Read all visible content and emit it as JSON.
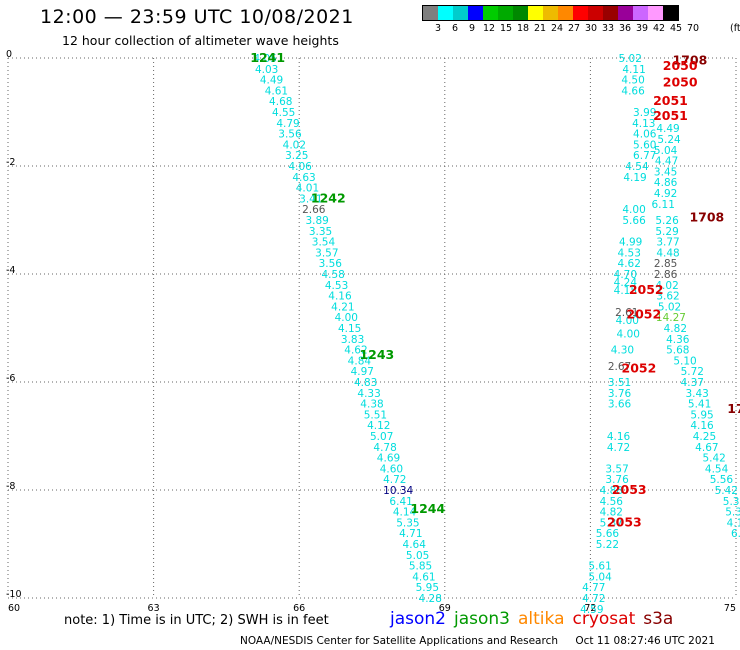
{
  "header": {
    "title": "12:00 — 23:59 UTC 10/08/2021",
    "subtitle": "12 hour collection of altimeter wave heights"
  },
  "color_scale": {
    "unit": "(ft)",
    "labels": [
      "3",
      "6",
      "9",
      "12",
      "15",
      "18",
      "21",
      "24",
      "27",
      "30",
      "33",
      "36",
      "39",
      "42",
      "45",
      "70"
    ],
    "colors": [
      "#7f7f7f",
      "#00ffff",
      "#00cccc",
      "#0000ff",
      "#00cc00",
      "#00aa00",
      "#008800",
      "#ffff00",
      "#eebb00",
      "#ff8800",
      "#ff0000",
      "#cc0000",
      "#990000",
      "#990099",
      "#cc66ff",
      "#ff99ff",
      "#000000"
    ]
  },
  "note": "note: 1) Time is in UTC; 2) SWH is in feet",
  "satellites": [
    {
      "name": "jason2",
      "color": "#0000ff"
    },
    {
      "name": "jason3",
      "color": "#009900"
    },
    {
      "name": "altika",
      "color": "#ff8800"
    },
    {
      "name": "cryosat",
      "color": "#dd0000"
    },
    {
      "name": "s3a",
      "color": "#880000"
    }
  ],
  "footer": {
    "credit": "NOAA/NESDIS Center for Satellite Applications and Research",
    "timestamp": "Oct 11 08:27:46 UTC 2021"
  },
  "chart_data": {
    "type": "scatter",
    "title": "12:00 — 23:59 UTC 10/08/2021",
    "subtitle": "12 hour collection of altimeter wave heights",
    "xlim": [
      60,
      75
    ],
    "ylim": [
      -10,
      0
    ],
    "xticks": [
      60,
      63,
      66,
      69,
      72,
      75
    ],
    "yticks": [
      0,
      -2,
      -4,
      -6,
      -8,
      -10
    ],
    "grid": true,
    "pass_times": [
      {
        "t": "1241",
        "x": 65.35,
        "y": 0,
        "color": "#009900"
      },
      {
        "t": "1242",
        "x": 66.6,
        "y": -2.6,
        "color": "#009900"
      },
      {
        "t": "1243",
        "x": 67.6,
        "y": -5.5,
        "color": "#009900"
      },
      {
        "t": "1244",
        "x": 68.65,
        "y": -8.35,
        "color": "#009900"
      },
      {
        "t": "1708",
        "x": 74.05,
        "y": -0.05,
        "color": "#880000"
      },
      {
        "t": "2050",
        "x": 73.85,
        "y": -0.15,
        "color": "#dd0000"
      },
      {
        "t": "2050",
        "x": 73.85,
        "y": -0.45,
        "color": "#dd0000"
      },
      {
        "t": "2051",
        "x": 73.65,
        "y": -0.8,
        "color": "#dd0000"
      },
      {
        "t": "2051",
        "x": 73.65,
        "y": -1.07,
        "color": "#dd0000"
      },
      {
        "t": "1708",
        "x": 74.4,
        "y": -2.95,
        "color": "#880000"
      },
      {
        "t": "2052",
        "x": 73.15,
        "y": -4.3,
        "color": "#dd0000"
      },
      {
        "t": "2052",
        "x": 73.1,
        "y": -4.75,
        "color": "#dd0000"
      },
      {
        "t": "2052",
        "x": 73.0,
        "y": -5.75,
        "color": "#dd0000"
      },
      {
        "t": "17",
        "x": 75.0,
        "y": -6.5,
        "color": "#880000"
      },
      {
        "t": "2053",
        "x": 72.8,
        "y": -8.0,
        "color": "#dd0000"
      },
      {
        "t": "2053",
        "x": 72.7,
        "y": -8.6,
        "color": "#dd0000"
      }
    ],
    "series": [
      {
        "name": "jason3",
        "points": [
          [
            65.3,
            0.0,
            "4.05"
          ],
          [
            65.33,
            -0.2,
            "4.03"
          ],
          [
            65.43,
            -0.4,
            "4.49"
          ],
          [
            65.53,
            -0.6,
            "4.61"
          ],
          [
            65.62,
            -0.8,
            "4.68"
          ],
          [
            65.68,
            -1.0,
            "4.55"
          ],
          [
            65.77,
            -1.2,
            "4.79"
          ],
          [
            65.81,
            -1.4,
            "3.56"
          ],
          [
            65.9,
            -1.6,
            "4.02"
          ],
          [
            65.95,
            -1.8,
            "3.25"
          ],
          [
            66.02,
            -2.0,
            "4.06"
          ],
          [
            66.1,
            -2.2,
            "4.63"
          ],
          [
            66.17,
            -2.4,
            "4.01"
          ],
          [
            66.24,
            -2.6,
            "3.41"
          ],
          [
            66.3,
            -2.8,
            "2.66"
          ],
          [
            66.37,
            -3.0,
            "3.89"
          ],
          [
            66.44,
            -3.2,
            "3.35"
          ],
          [
            66.5,
            -3.4,
            "3.54"
          ],
          [
            66.57,
            -3.6,
            "3.57"
          ],
          [
            66.64,
            -3.8,
            "3.56"
          ],
          [
            66.7,
            -4.0,
            "4.58"
          ],
          [
            66.77,
            -4.2,
            "4.53"
          ],
          [
            66.84,
            -4.4,
            "4.16"
          ],
          [
            66.9,
            -4.6,
            "4.21"
          ],
          [
            66.97,
            -4.8,
            "4.00"
          ],
          [
            67.04,
            -5.0,
            "4.15"
          ],
          [
            67.1,
            -5.2,
            "3.83"
          ],
          [
            67.17,
            -5.4,
            "4.62"
          ],
          [
            67.24,
            -5.6,
            "4.84"
          ],
          [
            67.3,
            -5.8,
            "4.97"
          ],
          [
            67.37,
            -6.0,
            "4.83"
          ],
          [
            67.44,
            -6.2,
            "4.33"
          ],
          [
            67.5,
            -6.4,
            "4.38"
          ],
          [
            67.57,
            -6.6,
            "5.51"
          ],
          [
            67.64,
            -6.8,
            "4.12"
          ],
          [
            67.7,
            -7.0,
            "5.07"
          ],
          [
            67.77,
            -7.2,
            "4.78"
          ],
          [
            67.84,
            -7.4,
            "4.69"
          ],
          [
            67.9,
            -7.6,
            "4.60"
          ],
          [
            67.97,
            -7.8,
            "4.72"
          ],
          [
            68.04,
            -8.0,
            "10.34"
          ],
          [
            68.1,
            -8.2,
            "6.41"
          ],
          [
            68.17,
            -8.4,
            "4.14"
          ],
          [
            68.24,
            -8.6,
            "5.35"
          ],
          [
            68.3,
            -8.8,
            "4.71"
          ],
          [
            68.37,
            -9.0,
            "4.64"
          ],
          [
            68.44,
            -9.2,
            "5.05"
          ],
          [
            68.5,
            -9.4,
            "5.85"
          ],
          [
            68.57,
            -9.6,
            "4.61"
          ],
          [
            68.64,
            -9.8,
            "5.95"
          ],
          [
            68.7,
            -10.0,
            "4.28"
          ]
        ]
      },
      {
        "name": "cryosat",
        "points": [
          [
            73.12,
            -1.0,
            "3.99"
          ],
          [
            73.1,
            -1.2,
            "4.13"
          ],
          [
            73.12,
            -1.4,
            "4.06"
          ],
          [
            73.12,
            -1.6,
            "5.60"
          ],
          [
            73.12,
            -1.8,
            "6.77"
          ],
          [
            72.96,
            -2.0,
            "4.54"
          ],
          [
            72.92,
            -2.2,
            "4.19"
          ],
          [
            72.9,
            -2.8,
            "4.00"
          ],
          [
            72.9,
            -3.0,
            "5.66"
          ],
          [
            72.83,
            -3.4,
            "4.99"
          ],
          [
            72.8,
            -3.6,
            "4.53"
          ],
          [
            72.8,
            -3.8,
            "4.62"
          ],
          [
            72.72,
            -4.0,
            "4.70"
          ],
          [
            72.72,
            -4.15,
            "4.24"
          ],
          [
            72.72,
            -4.3,
            "4.15"
          ],
          [
            72.75,
            -4.7,
            "2.61"
          ],
          [
            72.76,
            -4.85,
            "4.00"
          ],
          [
            72.78,
            -5.1,
            "4.00"
          ],
          [
            72.66,
            -5.4,
            "4.30"
          ],
          [
            72.6,
            -5.7,
            "2.67"
          ],
          [
            72.6,
            -6.0,
            "3.51"
          ],
          [
            72.6,
            -6.2,
            "3.76"
          ],
          [
            72.6,
            -6.4,
            "3.66"
          ],
          [
            72.58,
            -7.0,
            "4.16"
          ],
          [
            72.58,
            -7.2,
            "4.72"
          ],
          [
            72.55,
            -7.6,
            "3.57"
          ],
          [
            72.55,
            -7.8,
            "3.76"
          ],
          [
            72.43,
            -8.0,
            "4.88"
          ],
          [
            72.43,
            -8.2,
            "4.56"
          ],
          [
            72.43,
            -8.4,
            "4.82"
          ],
          [
            72.43,
            -8.6,
            "5.37"
          ],
          [
            72.35,
            -8.8,
            "5.66"
          ],
          [
            72.35,
            -9.0,
            "5.22"
          ],
          [
            72.2,
            -9.4,
            "5.61"
          ],
          [
            72.2,
            -9.6,
            "5.04"
          ],
          [
            72.07,
            -9.8,
            "4.77"
          ],
          [
            72.07,
            -10.0,
            "4.72"
          ],
          [
            72.03,
            -10.2,
            "4.59"
          ]
        ]
      },
      {
        "name": "s3a",
        "points": [
          [
            72.82,
            0.0,
            "5.02"
          ],
          [
            72.9,
            -0.2,
            "4.11"
          ],
          [
            72.88,
            -0.4,
            "4.50"
          ],
          [
            72.88,
            -0.6,
            "4.66"
          ],
          [
            73.6,
            -1.3,
            "4.49"
          ],
          [
            73.62,
            -1.5,
            "5.24"
          ],
          [
            73.55,
            -1.7,
            "5.04"
          ],
          [
            73.57,
            -1.9,
            "4.47"
          ],
          [
            73.55,
            -2.1,
            "3.45"
          ],
          [
            73.55,
            -2.3,
            "4.86"
          ],
          [
            73.55,
            -2.5,
            "4.92"
          ],
          [
            73.5,
            -2.7,
            "6.11"
          ],
          [
            73.58,
            -3.0,
            "5.26"
          ],
          [
            73.58,
            -3.2,
            "5.29"
          ],
          [
            73.6,
            -3.4,
            "3.77"
          ],
          [
            73.6,
            -3.6,
            "4.48"
          ],
          [
            73.55,
            -3.8,
            "2.85"
          ],
          [
            73.55,
            -4.0,
            "2.86"
          ],
          [
            73.58,
            -4.2,
            "4.02"
          ],
          [
            73.6,
            -4.4,
            "3.62"
          ],
          [
            73.63,
            -4.6,
            "5.02"
          ],
          [
            73.66,
            -4.8,
            "14.27"
          ],
          [
            73.75,
            -5.0,
            "4.82"
          ],
          [
            73.8,
            -5.2,
            "4.36"
          ],
          [
            73.8,
            -5.4,
            "5.68"
          ],
          [
            73.95,
            -5.6,
            "5.10"
          ],
          [
            74.1,
            -5.8,
            "5.72"
          ],
          [
            74.1,
            -6.0,
            "4.37"
          ],
          [
            74.2,
            -6.2,
            "3.43"
          ],
          [
            74.25,
            -6.4,
            "5.41"
          ],
          [
            74.3,
            -6.6,
            "5.95"
          ],
          [
            74.3,
            -6.8,
            "4.16"
          ],
          [
            74.35,
            -7.0,
            "4.25"
          ],
          [
            74.4,
            -7.2,
            "4.67"
          ],
          [
            74.55,
            -7.4,
            "5.42"
          ],
          [
            74.6,
            -7.6,
            "4.54"
          ],
          [
            74.7,
            -7.8,
            "5.56"
          ],
          [
            74.8,
            -8.0,
            "5.42"
          ],
          [
            74.9,
            -8.2,
            "5.3"
          ],
          [
            74.95,
            -8.4,
            "5.3"
          ],
          [
            74.98,
            -8.6,
            "4.1"
          ],
          [
            75.0,
            -8.8,
            "6."
          ]
        ]
      }
    ]
  }
}
